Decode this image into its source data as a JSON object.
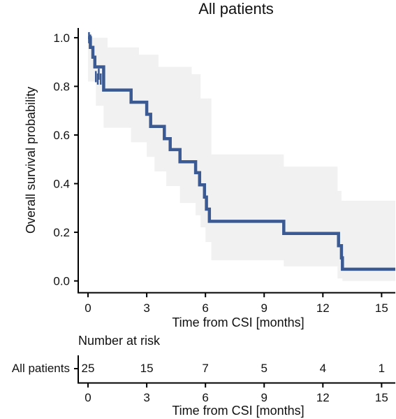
{
  "chart_data": {
    "type": "line",
    "title": "All patients",
    "xlabel": "Time from CSI [months]",
    "ylabel": "Overall survival probability",
    "xlim": [
      -0.5,
      15.7
    ],
    "ylim": [
      -0.05,
      1.04
    ],
    "xticks": [
      0,
      3,
      6,
      9,
      12,
      15
    ],
    "yticks": [
      0.0,
      0.2,
      0.4,
      0.6,
      0.8,
      1.0
    ],
    "xtick_labels": [
      "0",
      "3",
      "6",
      "9",
      "12",
      "15"
    ],
    "ytick_labels": [
      "0.0",
      "0.2",
      "0.4",
      "0.6",
      "0.8",
      "1.0"
    ],
    "grid": false,
    "line_color": "#3b5a94",
    "ci_color": "#f1f1f1",
    "series": [
      {
        "name": "All patients",
        "curve": [
          [
            0,
            1.0
          ],
          [
            0.12,
            1.0
          ],
          [
            0.12,
            0.96
          ],
          [
            0.25,
            0.96
          ],
          [
            0.25,
            0.92
          ],
          [
            0.35,
            0.92
          ],
          [
            0.35,
            0.88
          ],
          [
            0.8,
            0.88
          ],
          [
            0.8,
            0.785
          ],
          [
            2.2,
            0.785
          ],
          [
            2.2,
            0.735
          ],
          [
            3.0,
            0.735
          ],
          [
            3.0,
            0.685
          ],
          [
            3.2,
            0.685
          ],
          [
            3.2,
            0.635
          ],
          [
            3.9,
            0.635
          ],
          [
            3.9,
            0.585
          ],
          [
            4.2,
            0.585
          ],
          [
            4.2,
            0.54
          ],
          [
            4.7,
            0.54
          ],
          [
            4.7,
            0.49
          ],
          [
            5.5,
            0.49
          ],
          [
            5.5,
            0.445
          ],
          [
            5.7,
            0.445
          ],
          [
            5.7,
            0.395
          ],
          [
            5.95,
            0.395
          ],
          [
            5.95,
            0.345
          ],
          [
            6.05,
            0.345
          ],
          [
            6.05,
            0.295
          ],
          [
            6.2,
            0.295
          ],
          [
            6.2,
            0.245
          ],
          [
            10.0,
            0.245
          ],
          [
            10.0,
            0.195
          ],
          [
            12.8,
            0.195
          ],
          [
            12.8,
            0.145
          ],
          [
            12.95,
            0.145
          ],
          [
            12.95,
            0.095
          ],
          [
            13.0,
            0.095
          ],
          [
            13.0,
            0.048
          ],
          [
            15.7,
            0.048
          ]
        ],
        "censored": [
          [
            0.05,
            1.0
          ],
          [
            0.12,
            0.99
          ],
          [
            0.4,
            0.84
          ],
          [
            0.5,
            0.83
          ],
          [
            0.55,
            0.85
          ],
          [
            0.65,
            0.83
          ]
        ],
        "ci_upper": [
          [
            0,
            1.0
          ],
          [
            1.0,
            1.0
          ],
          [
            1.0,
            0.96
          ],
          [
            2.6,
            0.96
          ],
          [
            2.6,
            0.93
          ],
          [
            3.6,
            0.93
          ],
          [
            3.6,
            0.88
          ],
          [
            5.3,
            0.88
          ],
          [
            5.3,
            0.85
          ],
          [
            5.75,
            0.85
          ],
          [
            5.75,
            0.75
          ],
          [
            6.3,
            0.75
          ],
          [
            6.3,
            0.52
          ],
          [
            10.0,
            0.52
          ],
          [
            10.0,
            0.47
          ],
          [
            12.75,
            0.47
          ],
          [
            12.75,
            0.37
          ],
          [
            12.95,
            0.37
          ],
          [
            12.95,
            0.33
          ],
          [
            15.7,
            0.33
          ]
        ],
        "ci_lower": [
          [
            0,
            0.82
          ],
          [
            0.4,
            0.82
          ],
          [
            0.4,
            0.72
          ],
          [
            0.8,
            0.72
          ],
          [
            0.8,
            0.63
          ],
          [
            2.2,
            0.63
          ],
          [
            2.2,
            0.57
          ],
          [
            3.0,
            0.57
          ],
          [
            3.0,
            0.51
          ],
          [
            3.4,
            0.51
          ],
          [
            3.4,
            0.45
          ],
          [
            4.0,
            0.45
          ],
          [
            4.0,
            0.39
          ],
          [
            4.7,
            0.39
          ],
          [
            4.7,
            0.32
          ],
          [
            5.5,
            0.32
          ],
          [
            5.5,
            0.27
          ],
          [
            5.75,
            0.27
          ],
          [
            5.75,
            0.22
          ],
          [
            6.0,
            0.22
          ],
          [
            6.0,
            0.16
          ],
          [
            6.3,
            0.16
          ],
          [
            6.3,
            0.085
          ],
          [
            10.0,
            0.085
          ],
          [
            10.0,
            0.06
          ],
          [
            12.75,
            0.06
          ],
          [
            12.75,
            0.01
          ],
          [
            13.0,
            0.01
          ],
          [
            13.0,
            0.0
          ],
          [
            15.7,
            0.0
          ]
        ]
      }
    ],
    "risk_table": {
      "title": "Number at risk",
      "strata_label": "All patients",
      "strata_color": "#1b4f72",
      "times": [
        0,
        3,
        6,
        9,
        12,
        15
      ],
      "counts": [
        25,
        15,
        7,
        5,
        4,
        1
      ],
      "time_labels": [
        "0",
        "3",
        "6",
        "9",
        "12",
        "15"
      ],
      "xlabel": "Time from CSI [months]"
    }
  }
}
